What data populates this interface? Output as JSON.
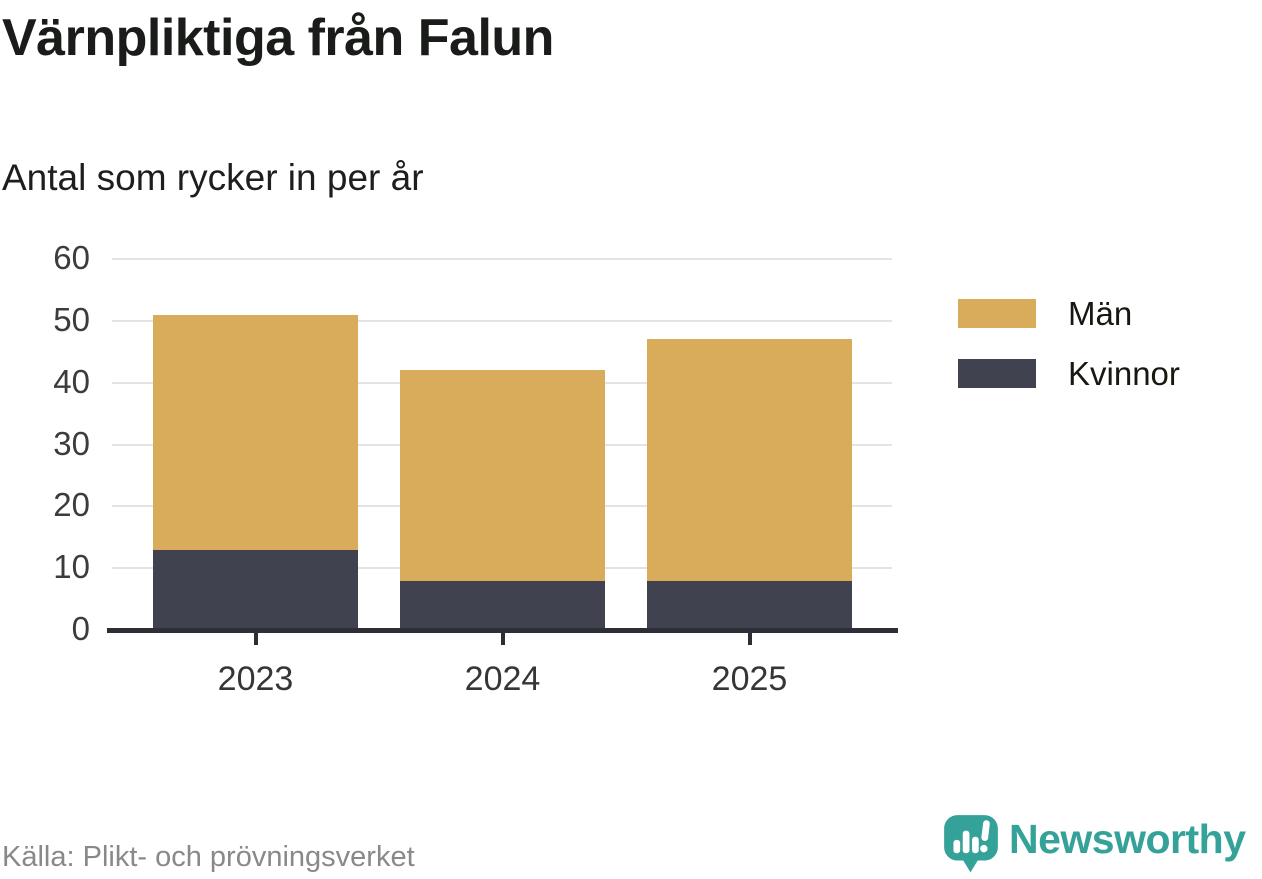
{
  "title": "Värnpliktiga från Falun",
  "subtitle": "Antal som rycker in per år",
  "source": {
    "text": "Källa: Plikt- och prövningsverket"
  },
  "logo": {
    "text": "Newsworthy",
    "icon": "newsworthy-chart-bubble-icon"
  },
  "colors": {
    "men": "#D9AC5C",
    "women": "#414250",
    "gridline": "#E3E3E3",
    "axis": "#2E2F36",
    "title_text": "#191C18",
    "tick_text": "#3C3C3C",
    "legend_text": "#17180F",
    "source_text": "#898989",
    "brand_teal": "#35A29A",
    "background": "#FFFFFF"
  },
  "legend": {
    "items": [
      {
        "label": "Män",
        "color": "#D9AC5C"
      },
      {
        "label": "Kvinnor",
        "color": "#414250"
      }
    ]
  },
  "chart_data": {
    "type": "bar",
    "stacked": true,
    "title": "Värnpliktiga från Falun",
    "subtitle": "Antal som rycker in per år",
    "xlabel": "",
    "ylabel": "Antal som rycker in per år",
    "categories": [
      "2023",
      "2024",
      "2025"
    ],
    "series": [
      {
        "name": "Kvinnor",
        "color": "#414250",
        "values": [
          13,
          8,
          8
        ]
      },
      {
        "name": "Män",
        "color": "#D9AC5C",
        "values": [
          38,
          34,
          39
        ]
      }
    ],
    "stack_totals": [
      51,
      42,
      47
    ],
    "y_ticks": [
      0,
      10,
      20,
      30,
      40,
      50,
      60
    ],
    "ylim": [
      0,
      60
    ],
    "grid": "horizontal",
    "legend_position": "right",
    "source": "Källa: Plikt- och prövningsverket"
  }
}
